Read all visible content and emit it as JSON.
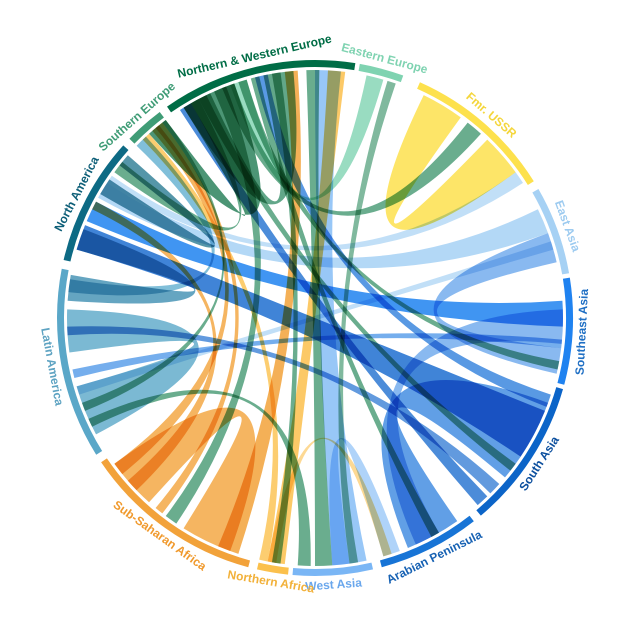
{
  "chart_data": {
    "type": "chord",
    "title": "",
    "regions": [
      {
        "name": "Northern & Western Europe",
        "color": "#006d46",
        "label_color": "#006d46",
        "arc_start_deg": -35,
        "arc_end_deg": 9
      },
      {
        "name": "Eastern Europe",
        "color": "#7fd3b1",
        "label_color": "#7fd3b1",
        "arc_start_deg": 10,
        "arc_end_deg": 20
      },
      {
        "name": "Fmr. USSR",
        "color": "#fde14d",
        "label_color": "#f4d63c",
        "arc_start_deg": 24,
        "arc_end_deg": 58
      },
      {
        "name": "East Asia",
        "color": "#a6d1f4",
        "label_color": "#9dcbf0",
        "arc_start_deg": 60,
        "arc_end_deg": 80
      },
      {
        "name": "Southeast Asia",
        "color": "#1f82f0",
        "label_color": "#1f6fc4",
        "arc_start_deg": 81,
        "arc_end_deg": 105
      },
      {
        "name": "South Asia",
        "color": "#0b64c8",
        "label_color": "#0c4f9e",
        "arc_start_deg": 106,
        "arc_end_deg": 140
      },
      {
        "name": "Arabian Peninsula",
        "color": "#1774d6",
        "label_color": "#1661b3",
        "arc_start_deg": 142,
        "arc_end_deg": 165
      },
      {
        "name": "West Asia",
        "color": "#7ab6f5",
        "label_color": "#6aa7ec",
        "arc_start_deg": 167,
        "arc_end_deg": 185
      },
      {
        "name": "Northern Africa",
        "color": "#fbc04c",
        "label_color": "#f2b13a",
        "arc_start_deg": 186,
        "arc_end_deg": 193
      },
      {
        "name": "Sub-Saharan Africa",
        "color": "#f2a23a",
        "label_color": "#f0992c",
        "arc_start_deg": 195,
        "arc_end_deg": 236
      },
      {
        "name": "Latin America",
        "color": "#5aa7c8",
        "label_color": "#5ea3c2",
        "arc_start_deg": 238,
        "arc_end_deg": 281
      },
      {
        "name": "North America",
        "color": "#0d6a84",
        "label_color": "#0e5f78",
        "arc_start_deg": 283,
        "arc_end_deg": 312
      },
      {
        "name": "Southern Europe",
        "color": "#3f9c76",
        "label_color": "#3f9c76",
        "arc_start_deg": 314,
        "arc_end_deg": 323
      }
    ],
    "flows": [
      {
        "from": "Southern Europe",
        "to": "Northern & Western Europe",
        "from_deg": [
          318,
          323
        ],
        "to_deg": [
          328,
          341
        ],
        "color": "#1f7a52",
        "opacity": 0.8
      },
      {
        "from": "Northern & Western Europe",
        "to": "Northern & Western Europe",
        "from_deg": [
          -32,
          -25
        ],
        "to_deg": [
          -12,
          -5
        ],
        "color": "#2d8a62",
        "opacity": 0.75
      },
      {
        "from": "Fmr. USSR",
        "to": "Fmr. USSR",
        "from_deg": [
          26,
          36
        ],
        "to_deg": [
          44,
          54
        ],
        "color": "#fde14d",
        "opacity": 0.85
      },
      {
        "from": "East Asia",
        "to": "North America",
        "from_deg": [
          64,
          70
        ],
        "to_deg": [
          299,
          303
        ],
        "color": "#a6d1f4",
        "opacity": 0.85
      },
      {
        "from": "Southeast Asia",
        "to": "North America",
        "from_deg": [
          86,
          92
        ],
        "to_deg": [
          293,
          298
        ],
        "color": "#1f82f0",
        "opacity": 0.85
      },
      {
        "from": "South Asia",
        "to": "North America",
        "from_deg": [
          112,
          124
        ],
        "to_deg": [
          286,
          292
        ],
        "color": "#1f6fd0",
        "opacity": 0.85
      },
      {
        "from": "West Asia",
        "to": "Northern & Western Europe",
        "from_deg": [
          168,
          176
        ],
        "to_deg": [
          0,
          6
        ],
        "color": "#86bdf6",
        "opacity": 0.85
      },
      {
        "from": "Northern Africa",
        "to": "Northern & Western Europe",
        "from_deg": [
          187,
          191
        ],
        "to_deg": [
          3,
          7
        ],
        "color": "#fbc04c",
        "opacity": 0.85
      },
      {
        "from": "Sub-Saharan Africa",
        "to": "Northern & Western Europe",
        "from_deg": [
          198,
          203
        ],
        "to_deg": [
          -7,
          -4
        ],
        "color": "#f2a23a",
        "opacity": 0.85
      },
      {
        "from": "Sub-Saharan Africa",
        "to": "Sub-Saharan Africa",
        "from_deg": [
          200,
          212
        ],
        "to_deg": [
          222,
          234
        ],
        "color": "#f2a23a",
        "opacity": 0.8
      },
      {
        "from": "Latin America",
        "to": "Latin America",
        "from_deg": [
          242,
          254
        ],
        "to_deg": [
          262,
          272
        ],
        "color": "#5aa7c8",
        "opacity": 0.8
      },
      {
        "from": "Latin America",
        "to": "North America",
        "from_deg": [
          274,
          280
        ],
        "to_deg": [
          286,
          291
        ],
        "color": "#3e8fb2",
        "opacity": 0.8
      },
      {
        "from": "Arabian Peninsula",
        "to": "South Asia",
        "from_deg": [
          145,
          158
        ],
        "to_deg": [
          110,
          130
        ],
        "color": "#2c7fde",
        "opacity": 0.75
      },
      {
        "from": "Arabian Peninsula",
        "to": "Southeast Asia",
        "from_deg": [
          150,
          156
        ],
        "to_deg": [
          88,
          96
        ],
        "color": "#3a8be6",
        "opacity": 0.6
      },
      {
        "from": "Southeast Asia",
        "to": "East Asia",
        "from_deg": [
          97,
          103
        ],
        "to_deg": [
          70,
          77
        ],
        "color": "#3a8be6",
        "opacity": 0.6
      },
      {
        "from": "Eastern Europe",
        "to": "Northern & Western Europe",
        "from_deg": [
          12,
          16
        ],
        "to_deg": [
          -20,
          -16
        ],
        "color": "#7fd3b1",
        "opacity": 0.8
      },
      {
        "from": "Northern & Western Europe",
        "to": "West Asia",
        "from_deg": [
          -2,
          1
        ],
        "to_deg": [
          176,
          180
        ],
        "color": "#2b8a5e",
        "opacity": 0.7
      },
      {
        "from": "Northern & Western Europe",
        "to": "Sub-Saharan Africa",
        "from_deg": [
          -24,
          -21
        ],
        "to_deg": [
          214,
          217
        ],
        "color": "#2b8a5e",
        "opacity": 0.7
      },
      {
        "from": "Northern & Western Europe",
        "to": "Northern Africa",
        "from_deg": [
          -10,
          -8
        ],
        "to_deg": [
          188,
          190
        ],
        "color": "#2b8a5e",
        "opacity": 0.7
      },
      {
        "from": "Northern & Western Europe",
        "to": "Arabian Peninsula",
        "from_deg": [
          -15,
          -13
        ],
        "to_deg": [
          150,
          152
        ],
        "color": "#2b8a5e",
        "opacity": 0.7
      },
      {
        "from": "Northern & Western Europe",
        "to": "South Asia",
        "from_deg": [
          -28,
          -26
        ],
        "to_deg": [
          126,
          128
        ],
        "color": "#2b8a5e",
        "opacity": 0.7
      },
      {
        "from": "Northern & Western Europe",
        "to": "Southeast Asia",
        "from_deg": [
          -18,
          -16
        ],
        "to_deg": [
          100,
          102
        ],
        "color": "#2b8a5e",
        "opacity": 0.7
      },
      {
        "from": "Northern & Western Europe",
        "to": "North America",
        "from_deg": [
          -30,
          -28
        ],
        "to_deg": [
          306,
          309
        ],
        "color": "#2b8a5e",
        "opacity": 0.7
      },
      {
        "from": "Southern Europe",
        "to": "Latin America",
        "from_deg": [
          314,
          317
        ],
        "to_deg": [
          276,
          279
        ],
        "color": "#62afd0",
        "opacity": 0.8
      },
      {
        "from": "Southern Europe",
        "to": "Sub-Saharan Africa",
        "from_deg": [
          320,
          322
        ],
        "to_deg": [
          218,
          220
        ],
        "color": "#f2a23a",
        "opacity": 0.8
      },
      {
        "from": "Fmr. USSR",
        "to": "Northern & Western Europe",
        "from_deg": [
          38,
          42
        ],
        "to_deg": [
          -22,
          -19
        ],
        "color": "#2b8a5e",
        "opacity": 0.7
      },
      {
        "from": "Fmr. USSR",
        "to": "North America",
        "from_deg": [
          54,
          57
        ],
        "to_deg": [
          303,
          305
        ],
        "color": "#a6d1f4",
        "opacity": 0.7
      },
      {
        "from": "East Asia",
        "to": "Latin America",
        "from_deg": [
          72,
          74
        ],
        "to_deg": [
          252,
          254
        ],
        "color": "#a6d1f4",
        "opacity": 0.7
      },
      {
        "from": "Southeast Asia",
        "to": "Latin America",
        "from_deg": [
          95,
          97
        ],
        "to_deg": [
          256,
          258
        ],
        "color": "#3a8be6",
        "opacity": 0.7
      },
      {
        "from": "South Asia",
        "to": "Latin America",
        "from_deg": [
          132,
          135
        ],
        "to_deg": [
          266,
          268
        ],
        "color": "#1f6fd0",
        "opacity": 0.7
      },
      {
        "from": "South Asia",
        "to": "Northern & Western Europe",
        "from_deg": [
          136,
          139
        ],
        "to_deg": [
          -33,
          -30
        ],
        "color": "#1f6fd0",
        "opacity": 0.8
      },
      {
        "from": "South Asia",
        "to": "Northern & Western Europe",
        "from_deg": [
          108,
          111
        ],
        "to_deg": [
          -14,
          -11
        ],
        "color": "#2f80dc",
        "opacity": 0.8
      },
      {
        "from": "West Asia",
        "to": "Latin America",
        "from_deg": [
          181,
          184
        ],
        "to_deg": [
          244,
          246
        ],
        "color": "#2b8a5e",
        "opacity": 0.7
      },
      {
        "from": "Sub-Saharan Africa",
        "to": "North America",
        "from_deg": [
          226,
          229
        ],
        "to_deg": [
          296,
          298
        ],
        "color": "#f2a23a",
        "opacity": 0.8
      },
      {
        "from": "Sub-Saharan Africa",
        "to": "Southern Europe",
        "from_deg": [
          231,
          234
        ],
        "to_deg": [
          319,
          321
        ],
        "color": "#f2a23a",
        "opacity": 0.8
      },
      {
        "from": "North America",
        "to": "North America",
        "from_deg": [
          300,
          304
        ],
        "to_deg": [
          308,
          311
        ],
        "color": "#0d6a84",
        "opacity": 0.7
      },
      {
        "from": "Northern Africa",
        "to": "Southern Europe",
        "from_deg": [
          191,
          193
        ],
        "to_deg": [
          316,
          318
        ],
        "color": "#fbc04c",
        "opacity": 0.8
      },
      {
        "from": "Eastern Europe",
        "to": "West Asia",
        "from_deg": [
          17,
          19
        ],
        "to_deg": [
          170,
          172
        ],
        "color": "#2b8a5e",
        "opacity": 0.6
      },
      {
        "from": "Latin America",
        "to": "Southern Europe",
        "from_deg": [
          248,
          250
        ],
        "to_deg": [
          322,
          323
        ],
        "color": "#2b8a5e",
        "opacity": 0.7
      },
      {
        "from": "West Asia",
        "to": "Arabian Peninsula",
        "from_deg": [
          172,
          176
        ],
        "to_deg": [
          160,
          164
        ],
        "color": "#7ab6f5",
        "opacity": 0.6
      },
      {
        "from": "Northern Africa",
        "to": "Arabian Peninsula",
        "from_deg": [
          189,
          191
        ],
        "to_deg": [
          162,
          164
        ],
        "color": "#fbc04c",
        "opacity": 0.6
      }
    ]
  }
}
